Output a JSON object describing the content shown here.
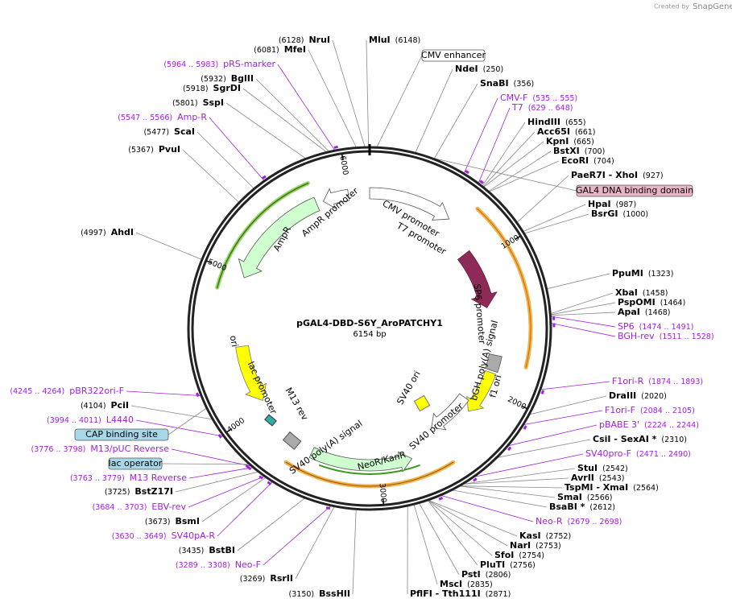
{
  "header": {
    "credit": "Created by",
    "brand": "SnapGene"
  },
  "map": {
    "name": "pGAL4-DBD-S6Y_AroPATCHY1",
    "length": "6154 bp",
    "ticks": [
      "1000",
      "2000",
      "3000",
      "4000",
      "5000",
      "6000"
    ],
    "boxes": [
      "CMV enhancer",
      "GAL4 DNA binding domain",
      "CAP binding site",
      "lac operator"
    ],
    "features": [
      "CMV promoter",
      "T7 promoter",
      "AmpR promoter",
      "AmpR",
      "ori",
      "lac promoter",
      "M13 rev",
      "SV40 poly(A) signal",
      "NeoR/KanR",
      "SV40 promoter",
      "SV40 ori",
      "bGH poly(A) signal",
      "f1 ori",
      "SP6 promoter"
    ]
  },
  "sites": [
    {
      "name": "MluI",
      "pos": "(6148)"
    },
    {
      "name": "NdeI",
      "pos": "(250)"
    },
    {
      "name": "SnaBI",
      "pos": "(356)"
    },
    {
      "name": "HindIII",
      "pos": "(655)"
    },
    {
      "name": "Acc65I",
      "pos": "(661)"
    },
    {
      "name": "KpnI",
      "pos": "(665)"
    },
    {
      "name": "BstXI",
      "pos": "(700)"
    },
    {
      "name": "EcoRI",
      "pos": "(704)"
    },
    {
      "name": "PaeR7I  - XhoI",
      "pos": "(927)"
    },
    {
      "name": "HpaI",
      "pos": "(987)"
    },
    {
      "name": "BsrGI",
      "pos": "(1000)"
    },
    {
      "name": "PpuMI",
      "pos": "(1323)"
    },
    {
      "name": "XbaI",
      "pos": "(1458)"
    },
    {
      "name": "PspOMI",
      "pos": "(1464)"
    },
    {
      "name": "ApaI",
      "pos": "(1468)"
    },
    {
      "name": "DraIII",
      "pos": "(2020)"
    },
    {
      "name": "CsiI  - SexAI *",
      "pos": "(2310)"
    },
    {
      "name": "StuI",
      "pos": "(2542)"
    },
    {
      "name": "AvrII",
      "pos": "(2543)"
    },
    {
      "name": "TspMI  - XmaI",
      "pos": "(2564)"
    },
    {
      "name": "SmaI",
      "pos": "(2566)"
    },
    {
      "name": "BsaBI *",
      "pos": "(2612)"
    },
    {
      "name": "KasI",
      "pos": "(2752)"
    },
    {
      "name": "NarI",
      "pos": "(2753)"
    },
    {
      "name": "SfoI",
      "pos": "(2754)"
    },
    {
      "name": "PluTI",
      "pos": "(2756)"
    },
    {
      "name": "PstI",
      "pos": "(2806)"
    },
    {
      "name": "MscI",
      "pos": "(2835)"
    },
    {
      "name": "PflFI  - Tth111I",
      "pos": "(2871)"
    },
    {
      "name": "NruI",
      "pos": "(6128)"
    },
    {
      "name": "MfeI",
      "pos": "(6081)"
    },
    {
      "name": "BglII",
      "pos": "(5932)"
    },
    {
      "name": "SgrDI",
      "pos": "(5918)"
    },
    {
      "name": "SspI",
      "pos": "(5801)"
    },
    {
      "name": "ScaI",
      "pos": "(5477)"
    },
    {
      "name": "PvuI",
      "pos": "(5367)"
    },
    {
      "name": "AhdI",
      "pos": "(4997)"
    },
    {
      "name": "PciI",
      "pos": "(4104)"
    },
    {
      "name": "BstZ17I",
      "pos": "(3725)"
    },
    {
      "name": "BsmI",
      "pos": "(3673)"
    },
    {
      "name": "BstBI",
      "pos": "(3435)"
    },
    {
      "name": "RsrII",
      "pos": "(3269)"
    },
    {
      "name": "BssHII",
      "pos": "(3150)"
    }
  ],
  "primers": [
    {
      "name": "CMV-F",
      "range": "(535 .. 555)"
    },
    {
      "name": "T7",
      "range": "(629 .. 648)"
    },
    {
      "name": "SP6",
      "range": "(1474 .. 1491)"
    },
    {
      "name": "BGH-rev",
      "range": "(1511 .. 1528)"
    },
    {
      "name": "F1ori-R",
      "range": "(1874 .. 1893)"
    },
    {
      "name": "F1ori-F",
      "range": "(2084 .. 2105)"
    },
    {
      "name": "pBABE 3'",
      "range": "(2224 .. 2244)"
    },
    {
      "name": "SV40pro-F",
      "range": "(2471 .. 2490)"
    },
    {
      "name": "Neo-R",
      "range": "(2679 .. 2698)"
    },
    {
      "name": "pRS-marker",
      "range": "(5964 .. 5983)"
    },
    {
      "name": "Amp-R",
      "range": "(5547 .. 5566)"
    },
    {
      "name": "pBR322ori-F",
      "range": "(4245 .. 4264)"
    },
    {
      "name": "L4440",
      "range": "(3994 .. 4011)"
    },
    {
      "name": "M13/pUC Reverse",
      "range": "(3776 .. 3798)"
    },
    {
      "name": "M13 Reverse",
      "range": "(3763 .. 3779)"
    },
    {
      "name": "EBV-rev",
      "range": "(3684 .. 3703)"
    },
    {
      "name": "SV40pA-R",
      "range": "(3630 .. 3649)"
    },
    {
      "name": "Neo-F",
      "range": "(3289 .. 3308)"
    }
  ]
}
